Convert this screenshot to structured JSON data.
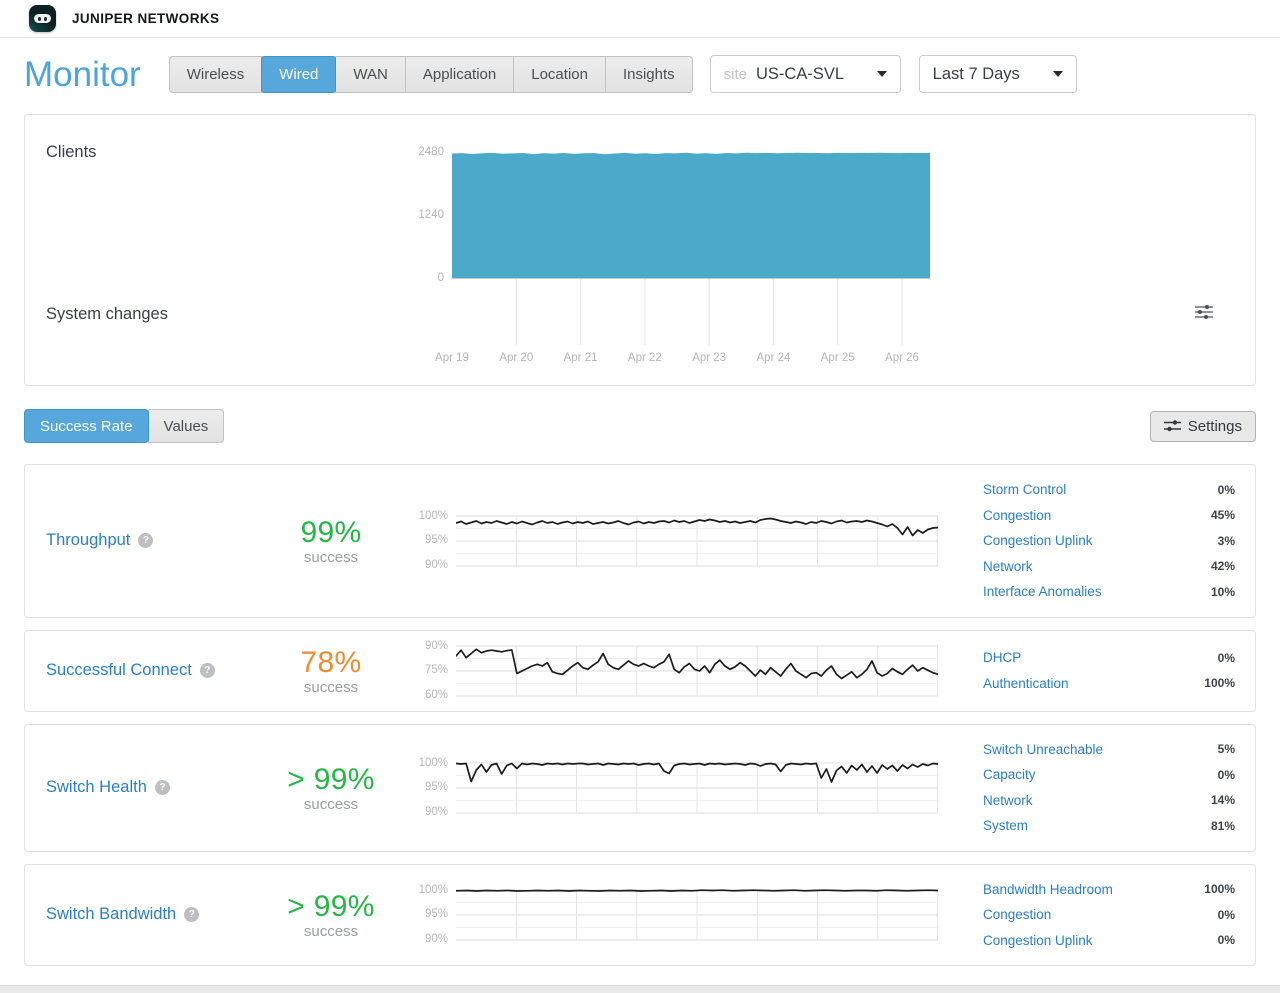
{
  "header": {
    "brand": "JUNIPER NETWORKS"
  },
  "nav": {
    "title": "Monitor",
    "tabs": [
      {
        "label": "Wireless",
        "active": false
      },
      {
        "label": "Wired",
        "active": true
      },
      {
        "label": "WAN",
        "active": false
      },
      {
        "label": "Application",
        "active": false
      },
      {
        "label": "Location",
        "active": false
      },
      {
        "label": "Insights",
        "active": false
      }
    ],
    "site": {
      "prefix": "site",
      "value": "US-CA-SVL"
    },
    "time_range": "Last 7 Days"
  },
  "overview": {
    "clients_label": "Clients",
    "system_changes_label": "System changes",
    "chart_data": {
      "type": "area",
      "title": "Clients",
      "ylim": [
        0,
        2480
      ],
      "yticks": [
        "2480",
        "1240",
        "0"
      ],
      "x_labels": [
        "Apr 19",
        "Apr 20",
        "Apr 21",
        "Apr 22",
        "Apr 23",
        "Apr 24",
        "Apr 25",
        "Apr 26"
      ],
      "color": "#4BA9CA",
      "values": [
        2460,
        2468,
        2450,
        2465,
        2472,
        2455,
        2462,
        2470,
        2448,
        2466,
        2458,
        2471,
        2452,
        2464,
        2469,
        2447,
        2460,
        2472,
        2456,
        2465,
        2450,
        2468,
        2462,
        2474,
        2458,
        2466,
        2452,
        2470,
        2463,
        2475,
        2468,
        2472,
        2465,
        2470,
        2474,
        2468,
        2471,
        2466,
        2473,
        2469,
        2472,
        2470,
        2474,
        2471,
        2468,
        2472,
        2470,
        2473
      ]
    }
  },
  "toolbar": {
    "modes": [
      {
        "label": "Success Rate",
        "active": true
      },
      {
        "label": "Values",
        "active": false
      }
    ],
    "settings_label": "Settings"
  },
  "metrics": [
    {
      "name": "Throughput",
      "value": "99%",
      "value_color": "#25B845",
      "sublabel": "success",
      "chart_data": {
        "type": "line",
        "ylim": [
          90,
          100
        ],
        "yticks": [
          "100%",
          "95%",
          "90%"
        ],
        "values": [
          98.6,
          98.9,
          98.4,
          98.7,
          99.0,
          98.5,
          98.8,
          98.6,
          99.0,
          98.7,
          98.4,
          98.8,
          98.5,
          98.9,
          98.6,
          98.3,
          98.7,
          99.0,
          98.6,
          98.8,
          98.4,
          98.7,
          98.9,
          98.5,
          98.8,
          98.6,
          98.9,
          98.4,
          98.6,
          98.8,
          98.5,
          98.7,
          99.0,
          98.6,
          98.3,
          98.7,
          98.9,
          98.5,
          98.8,
          98.6,
          98.9,
          99.0,
          98.7,
          99.1,
          98.8,
          99.0,
          98.6,
          98.9,
          99.2,
          99.0,
          99.3,
          99.1,
          98.8,
          99.0,
          98.7,
          98.9,
          98.6,
          98.8,
          99.0,
          98.7,
          99.2,
          99.4,
          99.5,
          99.3,
          99.0,
          98.8,
          98.6,
          98.9,
          98.7,
          98.4,
          98.8,
          98.6,
          99.0,
          98.8,
          98.5,
          98.9,
          99.1,
          98.7,
          98.9,
          99.0,
          98.8,
          99.1,
          98.9,
          98.6,
          98.3,
          97.9,
          98.4,
          97.6,
          96.3,
          97.8,
          96.1,
          97.2,
          96.6,
          97.3,
          97.6,
          97.7
        ]
      },
      "classifiers": [
        {
          "label": "Storm Control",
          "value": "0%"
        },
        {
          "label": "Congestion",
          "value": "45%"
        },
        {
          "label": "Congestion Uplink",
          "value": "3%"
        },
        {
          "label": "Network",
          "value": "42%"
        },
        {
          "label": "Interface Anomalies",
          "value": "10%"
        }
      ]
    },
    {
      "name": "Successful Connect",
      "value": "78%",
      "value_color": "#EF8C33",
      "sublabel": "success",
      "chart_data": {
        "type": "line",
        "ylim": [
          60,
          90
        ],
        "yticks": [
          "90%",
          "75%",
          "60%"
        ],
        "values": [
          84.0,
          87.5,
          83.0,
          85.5,
          88.0,
          86.0,
          87.0,
          87.5,
          87.0,
          86.5,
          87.2,
          87.6,
          73.5,
          75.0,
          76.5,
          78.0,
          79.0,
          78.0,
          80.0,
          74.5,
          73.5,
          73.0,
          75.5,
          78.0,
          80.0,
          77.0,
          76.0,
          78.5,
          80.5,
          85.5,
          79.0,
          77.0,
          76.0,
          78.5,
          81.0,
          79.0,
          78.0,
          79.5,
          78.0,
          77.0,
          79.0,
          80.5,
          85.0,
          76.0,
          74.0,
          77.5,
          79.5,
          76.0,
          75.0,
          78.0,
          74.0,
          79.0,
          81.5,
          78.0,
          76.0,
          77.5,
          80.0,
          78.0,
          75.0,
          72.0,
          75.5,
          73.0,
          77.0,
          74.5,
          72.0,
          76.0,
          79.5,
          75.0,
          73.0,
          71.0,
          73.5,
          74.0,
          72.0,
          75.5,
          78.0,
          73.0,
          70.5,
          72.5,
          74.5,
          71.0,
          73.0,
          76.0,
          81.0,
          74.0,
          72.0,
          73.5,
          76.5,
          74.5,
          73.0,
          76.0,
          78.5,
          75.0,
          77.0,
          75.5,
          74.0,
          73.0
        ]
      },
      "classifiers": [
        {
          "label": "DHCP",
          "value": "0%"
        },
        {
          "label": "Authentication",
          "value": "100%"
        }
      ]
    },
    {
      "name": "Switch Health",
      "value": "> 99%",
      "value_color": "#25B845",
      "sublabel": "success",
      "chart_data": {
        "type": "line",
        "ylim": [
          90,
          100
        ],
        "yticks": [
          "100%",
          "95%",
          "90%"
        ],
        "values": [
          99.9,
          99.8,
          99.9,
          96.3,
          98.6,
          99.7,
          98.2,
          99.6,
          99.9,
          97.8,
          99.5,
          99.9,
          98.9,
          99.9,
          99.7,
          99.9,
          99.8,
          99.6,
          99.9,
          99.8,
          99.9,
          99.7,
          99.9,
          99.8,
          99.9,
          99.9,
          99.7,
          99.8,
          99.9,
          99.6,
          99.9,
          99.8,
          99.7,
          99.9,
          99.8,
          99.9,
          99.6,
          99.8,
          99.9,
          99.7,
          99.9,
          98.4,
          97.9,
          99.5,
          99.8,
          99.9,
          99.7,
          99.8,
          99.9,
          99.6,
          99.9,
          99.8,
          99.9,
          99.7,
          99.8,
          99.9,
          99.8,
          99.6,
          99.9,
          99.8,
          99.4,
          99.8,
          99.9,
          99.7,
          98.3,
          99.6,
          99.9,
          99.8,
          99.7,
          99.9,
          99.8,
          99.9,
          97.0,
          98.8,
          96.2,
          98.5,
          99.3,
          98.0,
          99.5,
          98.6,
          99.7,
          98.2,
          99.4,
          98.0,
          99.6,
          98.8,
          99.5,
          98.4,
          99.6,
          98.9,
          99.7,
          99.2,
          99.8,
          99.5,
          99.9,
          99.8
        ]
      },
      "classifiers": [
        {
          "label": "Switch Unreachable",
          "value": "5%"
        },
        {
          "label": "Capacity",
          "value": "0%"
        },
        {
          "label": "Network",
          "value": "14%"
        },
        {
          "label": "System",
          "value": "81%"
        }
      ]
    },
    {
      "name": "Switch Bandwidth",
      "value": "> 99%",
      "value_color": "#25B845",
      "sublabel": "success",
      "chart_data": {
        "type": "line",
        "ylim": [
          90,
          100
        ],
        "yticks": [
          "100%",
          "95%",
          "90%"
        ],
        "values": [
          99.85,
          99.9,
          99.8,
          99.9,
          99.85,
          99.9,
          99.8,
          99.85,
          99.9,
          99.85,
          99.9,
          99.8,
          99.9,
          99.85,
          99.8,
          99.9,
          99.85,
          99.9,
          99.8,
          99.85,
          99.9,
          99.8,
          99.9,
          99.85,
          99.95,
          99.9,
          99.95,
          99.85,
          99.9,
          99.95,
          99.9,
          99.85,
          99.9,
          99.95,
          99.85,
          99.9,
          99.95,
          99.9,
          99.85,
          99.9,
          99.9,
          99.85,
          99.95,
          99.9,
          99.85,
          99.9,
          99.95,
          99.9
        ]
      },
      "classifiers": [
        {
          "label": "Bandwidth Headroom",
          "value": "100%"
        },
        {
          "label": "Congestion",
          "value": "0%"
        },
        {
          "label": "Congestion Uplink",
          "value": "0%"
        }
      ]
    }
  ],
  "colors": {
    "accent_blue": "#56A7DC",
    "link_blue": "#2A7FC9",
    "chart_blue": "#4BA9CA",
    "success_green": "#25B845",
    "warn_orange": "#EF8C33",
    "line_black": "#1C1C1C"
  }
}
